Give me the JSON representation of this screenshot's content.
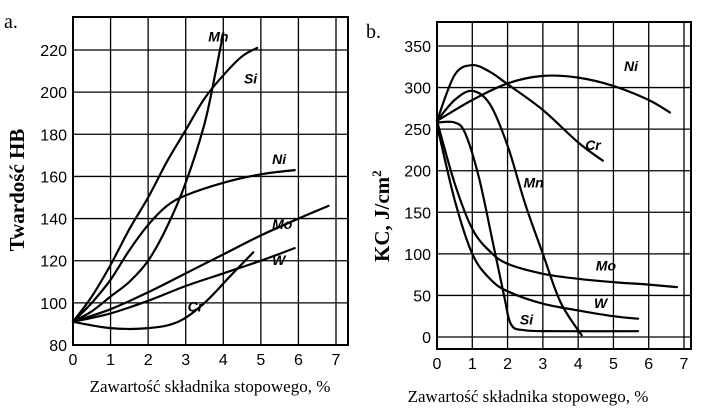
{
  "chart_data": [
    {
      "type": "line",
      "panel_label": "a.",
      "xlabel": "Zawartość składnika stopowego, %",
      "ylabel": "Twardość HB",
      "xlim": [
        0,
        7
      ],
      "ylim": [
        80,
        230
      ],
      "xticks": [
        "0",
        "1",
        "2",
        "3",
        "4",
        "5",
        "6",
        "7"
      ],
      "yticks": [
        "80",
        "100",
        "120",
        "140",
        "160",
        "180",
        "200",
        "220"
      ],
      "grid": true,
      "series": [
        {
          "name": "Mn",
          "points": [
            [
              0,
              91
            ],
            [
              0.5,
              96
            ],
            [
              1,
              103
            ],
            [
              1.5,
              110
            ],
            [
              2,
              120
            ],
            [
              2.5,
              136
            ],
            [
              3,
              157
            ],
            [
              3.5,
              185
            ],
            [
              3.8,
              210
            ],
            [
              4,
              228
            ]
          ],
          "label_at": [
            3.6,
            224
          ]
        },
        {
          "name": "Si",
          "points": [
            [
              0,
              91
            ],
            [
              0.5,
              103
            ],
            [
              1,
              118
            ],
            [
              1.5,
              135
            ],
            [
              2,
              150
            ],
            [
              2.5,
              167
            ],
            [
              3,
              182
            ],
            [
              3.5,
              197
            ],
            [
              4,
              208
            ],
            [
              4.5,
              217
            ],
            [
              4.9,
              221
            ]
          ],
          "label_at": [
            4.55,
            204
          ]
        },
        {
          "name": "Ni",
          "points": [
            [
              0,
              91
            ],
            [
              0.5,
              100
            ],
            [
              1,
              111
            ],
            [
              1.5,
              125
            ],
            [
              2,
              137
            ],
            [
              2.5,
              146
            ],
            [
              3,
              151
            ],
            [
              4,
              157
            ],
            [
              5,
              161
            ],
            [
              5.9,
              163
            ]
          ],
          "label_at": [
            5.3,
            166
          ]
        },
        {
          "name": "Mo",
          "points": [
            [
              0,
              91
            ],
            [
              1,
              97
            ],
            [
              2,
              105
            ],
            [
              3,
              114
            ],
            [
              4,
              123
            ],
            [
              5,
              132
            ],
            [
              6,
              140
            ],
            [
              6.8,
              146
            ]
          ],
          "label_at": [
            5.3,
            135
          ]
        },
        {
          "name": "W",
          "points": [
            [
              0,
              91
            ],
            [
              1,
              95
            ],
            [
              2,
              101
            ],
            [
              3,
              108
            ],
            [
              4,
              114
            ],
            [
              5,
              120
            ],
            [
              5.9,
              126
            ]
          ],
          "label_at": [
            5.3,
            118
          ]
        },
        {
          "name": "Cr",
          "points": [
            [
              0,
              91
            ],
            [
              1,
              88
            ],
            [
              2,
              88
            ],
            [
              2.8,
              91
            ],
            [
              3.5,
              100
            ],
            [
              4.2,
              113
            ],
            [
              4.8,
              124
            ]
          ],
          "label_at": [
            3.05,
            96
          ]
        }
      ]
    },
    {
      "type": "line",
      "panel_label": "b.",
      "xlabel": "Zawartość składnika stopowego, %",
      "ylabel": "KC, J/cm",
      "ylabel_sup": "2",
      "xlim": [
        0,
        7
      ],
      "ylim": [
        0,
        350
      ],
      "xticks": [
        "0",
        "1",
        "2",
        "3",
        "4",
        "5",
        "6",
        "7"
      ],
      "yticks": [
        "0",
        "50",
        "100",
        "150",
        "200",
        "250",
        "300",
        "350"
      ],
      "grid": true,
      "series": [
        {
          "name": "Ni",
          "points": [
            [
              0,
              260
            ],
            [
              1,
              285
            ],
            [
              2,
              305
            ],
            [
              3,
              314
            ],
            [
              4,
              312
            ],
            [
              5,
              302
            ],
            [
              6,
              285
            ],
            [
              6.6,
              270
            ]
          ],
          "label_at": [
            5.3,
            320
          ]
        },
        {
          "name": "Cr",
          "points": [
            [
              0,
              260
            ],
            [
              0.5,
              315
            ],
            [
              1,
              327
            ],
            [
              1.5,
              319
            ],
            [
              2,
              304
            ],
            [
              3,
              273
            ],
            [
              4,
              234
            ],
            [
              4.7,
              212
            ]
          ],
          "label_at": [
            4.2,
            225
          ]
        },
        {
          "name": "Mn",
          "points": [
            [
              0,
              260
            ],
            [
              0.5,
              285
            ],
            [
              1,
              296
            ],
            [
              1.5,
              280
            ],
            [
              2,
              230
            ],
            [
              2.5,
              160
            ],
            [
              3,
              100
            ],
            [
              3.5,
              42
            ],
            [
              4.1,
              2
            ]
          ],
          "label_at": [
            2.45,
            180
          ]
        },
        {
          "name": "Mo",
          "points": [
            [
              0,
              260
            ],
            [
              0.5,
              185
            ],
            [
              1,
              130
            ],
            [
              1.5,
              103
            ],
            [
              2,
              88
            ],
            [
              3,
              76
            ],
            [
              4,
              70
            ],
            [
              5,
              66
            ],
            [
              6,
              63
            ],
            [
              6.8,
              60
            ]
          ],
          "label_at": [
            4.5,
            80
          ]
        },
        {
          "name": "W",
          "points": [
            [
              0,
              255
            ],
            [
              0.5,
              165
            ],
            [
              1,
              100
            ],
            [
              1.5,
              70
            ],
            [
              2,
              55
            ],
            [
              3,
              40
            ],
            [
              4,
              32
            ],
            [
              5,
              25
            ],
            [
              5.7,
              22
            ]
          ],
          "label_at": [
            4.45,
            35
          ]
        },
        {
          "name": "Si",
          "points": [
            [
              0,
              258
            ],
            [
              0.5,
              258
            ],
            [
              0.8,
              245
            ],
            [
              1.2,
              190
            ],
            [
              1.6,
              110
            ],
            [
              1.9,
              50
            ],
            [
              2.1,
              15
            ],
            [
              2.5,
              8
            ],
            [
              3.5,
              7
            ],
            [
              5.7,
              7
            ]
          ],
          "label_at": [
            2.35,
            15
          ]
        }
      ]
    }
  ]
}
